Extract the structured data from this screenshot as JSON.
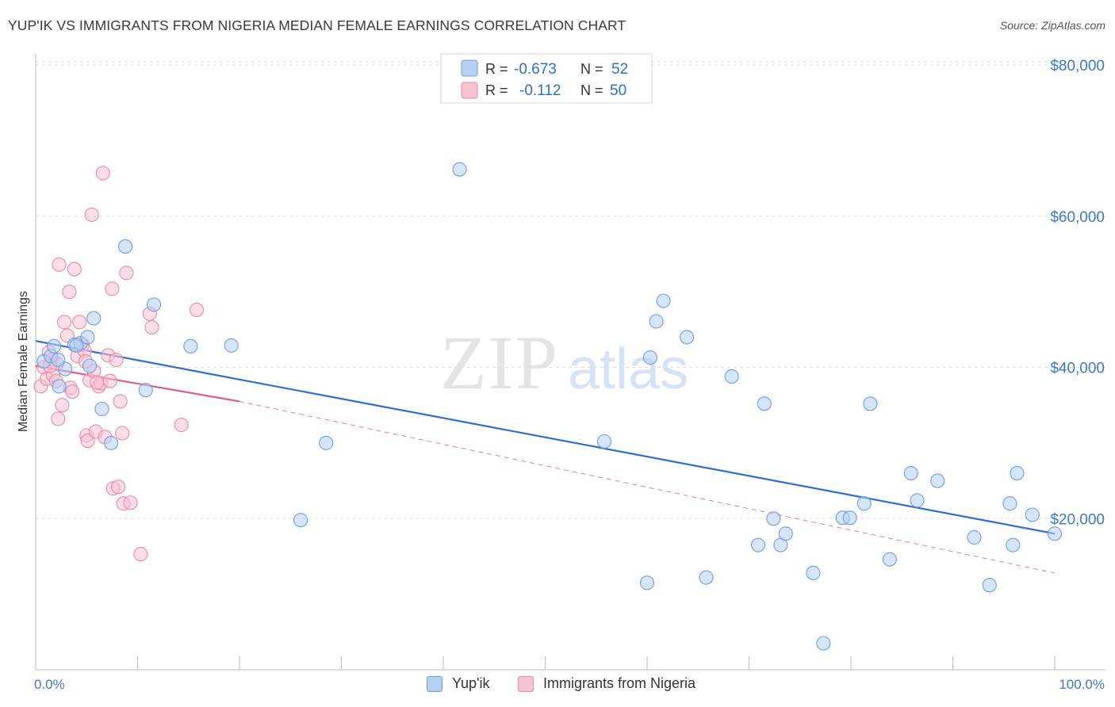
{
  "header": {
    "title": "YUP'IK VS IMMIGRANTS FROM NIGERIA MEDIAN FEMALE EARNINGS CORRELATION CHART",
    "source": "Source: ZipAtlas.com"
  },
  "watermark": {
    "zip": "ZIP",
    "atlas": "atlas"
  },
  "legend_top": [
    {
      "r_label": "R =",
      "r_value": "-0.673",
      "n_label": "N =",
      "n_value": "52"
    },
    {
      "r_label": "R =",
      "r_value": "-0.112",
      "n_label": "N =",
      "n_value": "50"
    }
  ],
  "colors": {
    "blue_fill": "#b7d0f2",
    "blue_stroke": "#6e9de0",
    "blue_line": "#2d6fcf",
    "pink_fill": "#f7c2d2",
    "pink_stroke": "#e88aa8",
    "pink_line": "#e05a8a",
    "axis_text_blue": "#3b78d0",
    "grid": "#dcdcdc"
  },
  "chart_data": {
    "type": "scatter",
    "title": "YUP'IK VS IMMIGRANTS FROM NIGERIA MEDIAN FEMALE EARNINGS CORRELATION CHART",
    "xlabel": "",
    "ylabel": "Median Female Earnings",
    "xlim": [
      0,
      100
    ],
    "ylim": [
      0,
      82000
    ],
    "x_tick_labels": [
      "0.0%",
      "100.0%"
    ],
    "y_ticks": [
      20000,
      40000,
      60000,
      80000
    ],
    "y_tick_labels": [
      "$20,000",
      "$40,000",
      "$60,000",
      "$80,000"
    ],
    "grid": true,
    "legend_position": "top-center",
    "series": [
      {
        "name": "Yup'ik",
        "r": -0.673,
        "n": 52,
        "trend": {
          "x": [
            0,
            100
          ],
          "y": [
            43500,
            18000
          ]
        },
        "points": [
          [
            0.8,
            40800
          ],
          [
            1.5,
            41500
          ],
          [
            1.8,
            42800
          ],
          [
            2.3,
            37500
          ],
          [
            2.9,
            39800
          ],
          [
            3.8,
            43000
          ],
          [
            4.4,
            43200
          ],
          [
            5.1,
            44000
          ],
          [
            5.3,
            40200
          ],
          [
            5.7,
            46500
          ],
          [
            6.5,
            34500
          ],
          [
            7.4,
            30000
          ],
          [
            8.8,
            56000
          ],
          [
            10.8,
            37000
          ],
          [
            11.6,
            48300
          ],
          [
            15.2,
            42800
          ],
          [
            19.2,
            42900
          ],
          [
            26.0,
            19800
          ],
          [
            28.5,
            30000
          ],
          [
            41.6,
            66200
          ],
          [
            55.8,
            30200
          ],
          [
            60.0,
            11500
          ],
          [
            60.3,
            41300
          ],
          [
            60.9,
            46100
          ],
          [
            61.6,
            48800
          ],
          [
            63.9,
            44000
          ],
          [
            65.8,
            12200
          ],
          [
            68.3,
            38800
          ],
          [
            70.9,
            16500
          ],
          [
            71.5,
            35200
          ],
          [
            72.4,
            20000
          ],
          [
            73.1,
            16500
          ],
          [
            73.6,
            18000
          ],
          [
            76.3,
            12800
          ],
          [
            77.3,
            3500
          ],
          [
            79.2,
            20100
          ],
          [
            79.9,
            20100
          ],
          [
            81.3,
            22000
          ],
          [
            81.9,
            35200
          ],
          [
            83.8,
            14600
          ],
          [
            85.9,
            26000
          ],
          [
            86.5,
            22400
          ],
          [
            88.5,
            25000
          ],
          [
            92.1,
            17500
          ],
          [
            93.6,
            11200
          ],
          [
            95.6,
            22000
          ],
          [
            95.9,
            16500
          ],
          [
            96.3,
            26000
          ],
          [
            97.8,
            20500
          ],
          [
            100.0,
            18000
          ],
          [
            2.2,
            41000
          ],
          [
            4.0,
            42900
          ]
        ]
      },
      {
        "name": "Immigrants from Nigeria",
        "r": -0.112,
        "n": 50,
        "trend_solid": {
          "x": [
            0,
            20
          ],
          "y": [
            40200,
            35500
          ]
        },
        "trend_dashed": {
          "x": [
            20,
            100
          ],
          "y": [
            35500,
            12800
          ]
        },
        "points": [
          [
            0.5,
            37500
          ],
          [
            0.8,
            40000
          ],
          [
            1.1,
            38500
          ],
          [
            1.3,
            42000
          ],
          [
            1.6,
            41000
          ],
          [
            1.7,
            39000
          ],
          [
            2.0,
            38200
          ],
          [
            2.1,
            40500
          ],
          [
            2.2,
            33200
          ],
          [
            2.3,
            53600
          ],
          [
            2.6,
            35000
          ],
          [
            2.8,
            46000
          ],
          [
            3.1,
            44200
          ],
          [
            3.3,
            50000
          ],
          [
            3.4,
            37300
          ],
          [
            3.6,
            36800
          ],
          [
            3.8,
            53000
          ],
          [
            4.1,
            41500
          ],
          [
            4.3,
            46000
          ],
          [
            4.6,
            43000
          ],
          [
            4.8,
            42200
          ],
          [
            5.0,
            31000
          ],
          [
            5.1,
            30300
          ],
          [
            5.3,
            38300
          ],
          [
            5.5,
            60200
          ],
          [
            5.7,
            39500
          ],
          [
            5.9,
            31500
          ],
          [
            6.2,
            37500
          ],
          [
            6.4,
            37900
          ],
          [
            6.6,
            65700
          ],
          [
            6.8,
            30800
          ],
          [
            7.1,
            41600
          ],
          [
            7.3,
            38200
          ],
          [
            7.5,
            50400
          ],
          [
            7.6,
            24000
          ],
          [
            7.9,
            41000
          ],
          [
            8.1,
            24200
          ],
          [
            8.3,
            35500
          ],
          [
            8.5,
            31300
          ],
          [
            8.6,
            22000
          ],
          [
            8.9,
            52500
          ],
          [
            9.3,
            22100
          ],
          [
            10.3,
            15300
          ],
          [
            11.2,
            47100
          ],
          [
            11.4,
            45300
          ],
          [
            14.3,
            32400
          ],
          [
            15.8,
            47600
          ],
          [
            1.4,
            40200
          ],
          [
            6.0,
            38000
          ],
          [
            4.9,
            40800
          ]
        ]
      }
    ]
  }
}
